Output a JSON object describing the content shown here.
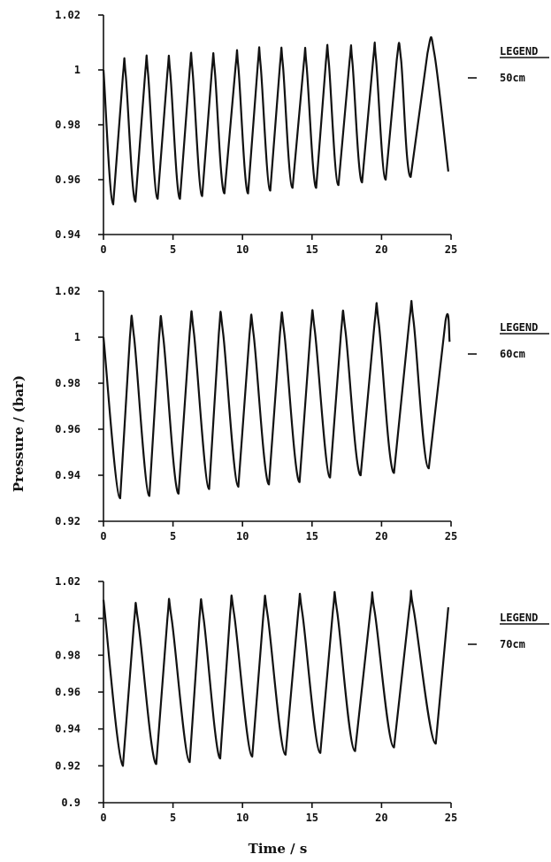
{
  "ylabel": "Pressure / (bar)",
  "xlabel": "Time / s",
  "legend_title": "LEGEND",
  "chart_data": [
    {
      "type": "line",
      "xlabel": "Time / s",
      "ylabel": "Pressure / (bar)",
      "xlim": [
        0,
        25
      ],
      "ylim": [
        0.94,
        1.02
      ],
      "xticks": [
        0,
        5,
        10,
        15,
        20,
        25
      ],
      "yticks": [
        0.94,
        0.96,
        0.98,
        1.0,
        1.02
      ],
      "ytick_labels": [
        "0.94",
        "0.96",
        "0.98",
        "1",
        "1.02"
      ],
      "legend": {
        "title": "LEGEND",
        "placement": "right"
      },
      "series": [
        {
          "name": "50cm",
          "x": [
            0,
            0.7,
            1.4,
            1.6,
            2.3,
            3.0,
            3.2,
            3.9,
            4.6,
            4.8,
            5.5,
            6.2,
            6.4,
            7.1,
            7.8,
            8.0,
            8.7,
            9.5,
            9.7,
            10.4,
            11.1,
            11.3,
            12.0,
            12.7,
            12.9,
            13.6,
            14.4,
            14.6,
            15.3,
            16.0,
            16.2,
            16.9,
            17.7,
            17.9,
            18.6,
            19.4,
            19.6,
            20.3,
            21.1,
            21.4,
            22.1,
            23.3,
            23.8,
            24.8
          ],
          "y": [
            1.0,
            0.951,
            0.998,
            0.998,
            0.952,
            0.999,
            0.999,
            0.953,
            0.999,
            0.999,
            0.953,
            1.0,
            1.0,
            0.954,
            1.0,
            1.0,
            0.955,
            1.001,
            1.001,
            0.955,
            1.002,
            1.002,
            0.956,
            1.002,
            1.002,
            0.957,
            1.002,
            1.002,
            0.957,
            1.003,
            1.003,
            0.958,
            1.003,
            1.003,
            0.959,
            1.004,
            1.004,
            0.96,
            1.004,
            1.004,
            0.961,
            1.006,
            1.006,
            0.963
          ]
        }
      ]
    },
    {
      "type": "line",
      "xlabel": "Time / s",
      "ylabel": "Pressure / (bar)",
      "xlim": [
        0,
        25
      ],
      "ylim": [
        0.92,
        1.02
      ],
      "xticks": [
        0,
        5,
        10,
        15,
        20,
        25
      ],
      "yticks": [
        0.92,
        0.94,
        0.96,
        0.98,
        1.0,
        1.02
      ],
      "ytick_labels": [
        "0.92",
        "0.94",
        "0.96",
        "0.98",
        "1",
        "1.02"
      ],
      "legend": {
        "title": "LEGEND",
        "placement": "right"
      },
      "series": [
        {
          "name": "60cm",
          "x": [
            0,
            1.2,
            1.9,
            2.2,
            3.3,
            4.0,
            4.3,
            5.4,
            6.2,
            6.5,
            7.6,
            8.3,
            8.6,
            9.7,
            10.5,
            10.8,
            11.9,
            12.7,
            13.0,
            14.1,
            14.9,
            15.2,
            16.3,
            17.1,
            17.4,
            18.5,
            19.5,
            19.8,
            20.9,
            22.0,
            22.3,
            23.4,
            24.6,
            24.9
          ],
          "y": [
            1.0,
            0.93,
            1.0,
            1.0,
            0.931,
            1.0,
            1.0,
            0.932,
            1.002,
            1.002,
            0.934,
            1.002,
            1.002,
            0.935,
            1.001,
            1.001,
            0.936,
            1.002,
            1.002,
            0.937,
            1.003,
            1.003,
            0.939,
            1.003,
            1.003,
            0.94,
            1.006,
            1.006,
            0.941,
            1.007,
            1.007,
            0.943,
            1.007,
            0.998
          ]
        }
      ]
    },
    {
      "type": "line",
      "xlabel": "Time / s",
      "ylabel": "Pressure / (bar)",
      "xlim": [
        0,
        25
      ],
      "ylim": [
        0.9,
        1.02
      ],
      "xticks": [
        0,
        5,
        10,
        15,
        20,
        25
      ],
      "yticks": [
        0.9,
        0.92,
        0.94,
        0.96,
        0.98,
        1.0,
        1.02
      ],
      "ytick_labels": [
        "0.9",
        "0.92",
        "0.94",
        "0.96",
        "0.98",
        "1",
        "1.02"
      ],
      "legend": {
        "title": "LEGEND",
        "placement": "right"
      },
      "series": [
        {
          "name": "70cm",
          "x": [
            0,
            1.4,
            2.2,
            2.5,
            3.8,
            4.6,
            4.9,
            6.2,
            6.9,
            7.2,
            8.4,
            9.1,
            9.4,
            10.7,
            11.5,
            11.8,
            13.1,
            14.0,
            14.3,
            15.6,
            16.5,
            16.8,
            18.1,
            19.2,
            19.5,
            20.9,
            22.0,
            22.3,
            23.9,
            24.8
          ],
          "y": [
            1.01,
            0.92,
            0.998,
            0.998,
            0.921,
            1.0,
            1.0,
            0.922,
            1.0,
            1.0,
            0.924,
            1.002,
            1.002,
            0.925,
            1.002,
            1.002,
            0.926,
            1.003,
            1.003,
            0.927,
            1.004,
            1.004,
            0.928,
            1.004,
            1.004,
            0.93,
            1.005,
            1.005,
            0.932,
            1.006
          ]
        }
      ]
    }
  ]
}
